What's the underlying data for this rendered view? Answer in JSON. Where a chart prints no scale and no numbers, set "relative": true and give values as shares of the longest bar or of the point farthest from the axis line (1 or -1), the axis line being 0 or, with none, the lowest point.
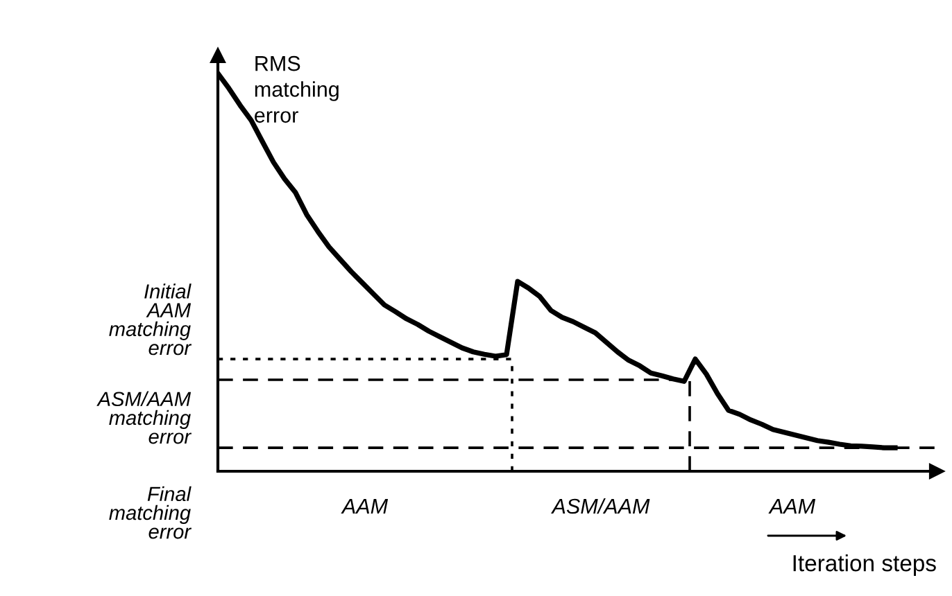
{
  "chart_data": {
    "type": "line",
    "relative": true,
    "ylabel": "RMS\nmatching\nerror",
    "xlabel": "Iteration steps",
    "categories": [
      null,
      null,
      null,
      null,
      null,
      null,
      null,
      null,
      null,
      null,
      null,
      null,
      null,
      null,
      null,
      null,
      null,
      null,
      null,
      null,
      null,
      null,
      null,
      null,
      null,
      null,
      null,
      null,
      null,
      null,
      null,
      null,
      null,
      null,
      null,
      null,
      null,
      null,
      null,
      null,
      null,
      null,
      null,
      null,
      null,
      null,
      null,
      null,
      null,
      null,
      null,
      null,
      null,
      null,
      null,
      null,
      null,
      null,
      null,
      null,
      null,
      null
    ],
    "series": [
      {
        "color": "#000000",
        "values": [
          1.0,
          0.962,
          0.92,
          0.882,
          0.829,
          0.777,
          0.735,
          0.7,
          0.645,
          0.603,
          0.564,
          0.533,
          0.502,
          0.474,
          0.446,
          0.418,
          0.401,
          0.383,
          0.369,
          0.352,
          0.338,
          0.324,
          0.31,
          0.3,
          0.294,
          0.289,
          0.293,
          0.477,
          0.46,
          0.439,
          0.404,
          0.387,
          0.376,
          0.362,
          0.348,
          0.324,
          0.3,
          0.279,
          0.265,
          0.247,
          0.24,
          0.232,
          0.226,
          0.282,
          0.244,
          0.195,
          0.153,
          0.143,
          0.129,
          0.118,
          0.105,
          0.098,
          0.091,
          0.084,
          0.077,
          0.073,
          0.068,
          0.064,
          0.063,
          0.061,
          0.059,
          0.059
        ]
      }
    ],
    "ref_lines": [
      {
        "axis": "y",
        "value": 0.282,
        "label": "Initial\nAAM\nmatching\nerror",
        "line_style": "dotted",
        "color": "#000000"
      },
      {
        "axis": "y",
        "value": 0.23,
        "label": "ASM/AAM\nmatching\nerror",
        "line_style": "dashed",
        "color": "#000000"
      },
      {
        "axis": "y",
        "value": 0.059,
        "label": "Final\nmatching\nerror",
        "line_style": "dashed",
        "color": "#000000"
      }
    ],
    "annotations": [
      "AAM",
      "ASM/AAM",
      "AAM"
    ],
    "grid": false,
    "marker": "none",
    "line_style": "solid"
  }
}
